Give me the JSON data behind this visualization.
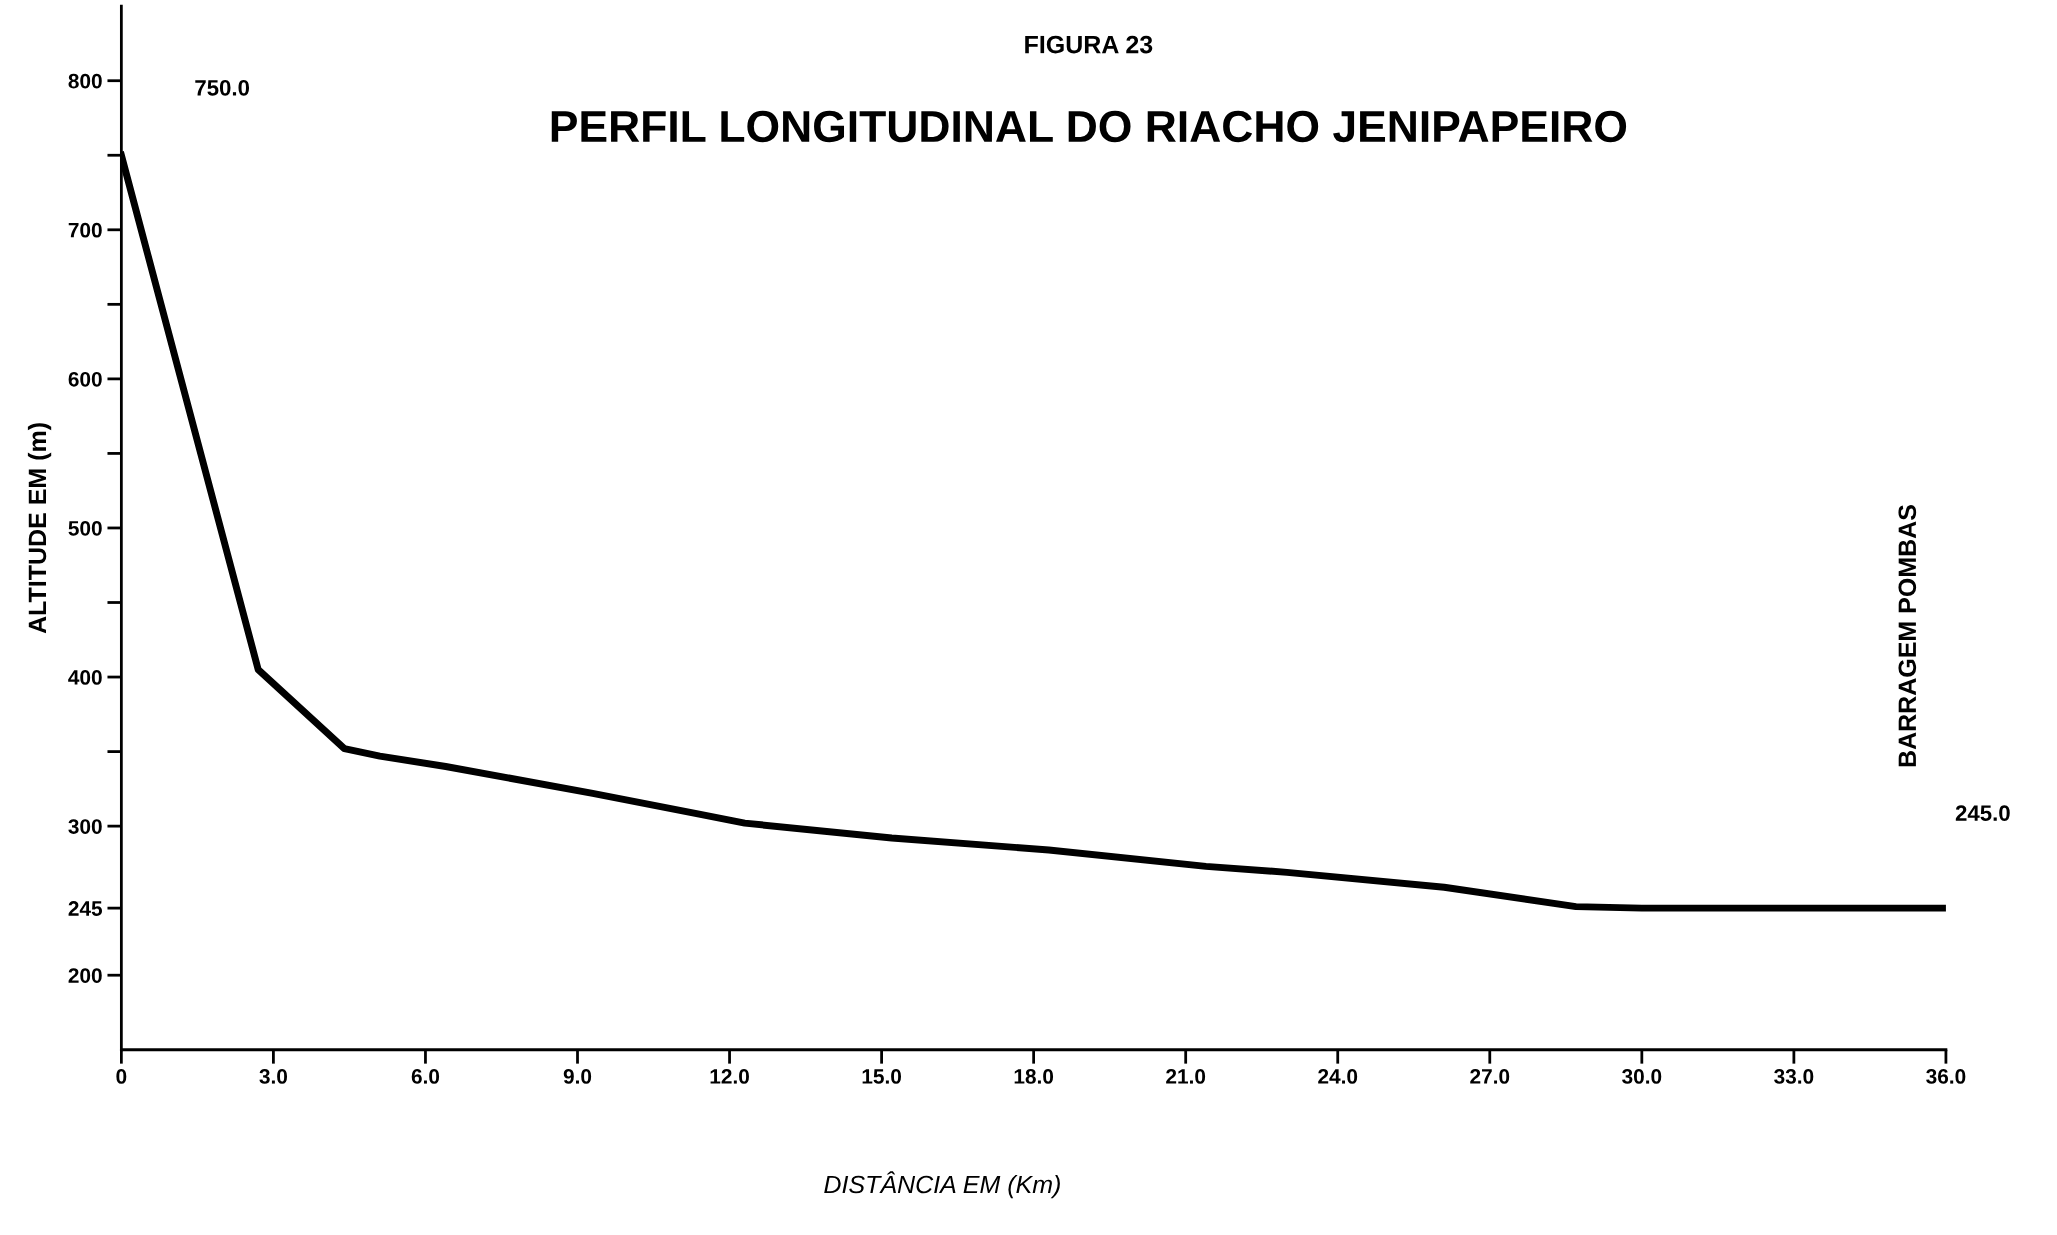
{
  "chart_data": {
    "type": "line",
    "subtitle": "FIGURA 23",
    "title": "PERFIL LONGITUDINAL DO RIACHO JENIPAPEIRO",
    "xlabel": "DISTÂNCIA EM (Km)",
    "ylabel": "ALTITUDE EM (m)",
    "x": [
      0,
      2.7,
      4.4,
      5.1,
      6.4,
      9.3,
      11.4,
      12.3,
      15.2,
      18.3,
      21.4,
      23.0,
      26.1,
      28.7,
      30.0,
      36.0
    ],
    "series": [
      {
        "color": "#000000",
        "values": [
          750,
          405,
          352,
          347,
          340,
          322,
          308,
          302,
          292,
          284,
          273,
          269,
          259,
          246,
          245,
          245
        ]
      }
    ],
    "xlim": [
      0,
      36
    ],
    "ylim": [
      150,
      850
    ],
    "xticks": [
      0,
      {
        "value": 3,
        "label": "3.0"
      },
      {
        "value": 6,
        "label": "6.0"
      },
      {
        "value": 9,
        "label": "9.0"
      },
      {
        "value": 12,
        "label": "12.0"
      },
      {
        "value": 15,
        "label": "15.0"
      },
      {
        "value": 18,
        "label": "18.0"
      },
      {
        "value": 21,
        "label": "21.0"
      },
      {
        "value": 24,
        "label": "24.0"
      },
      {
        "value": 27,
        "label": "27.0"
      },
      {
        "value": 30,
        "label": "30.0"
      },
      {
        "value": 33,
        "label": "33.0"
      },
      {
        "value": 36,
        "label": "36.0"
      }
    ],
    "yticks": [
      200,
      245,
      300,
      {
        "value": 350,
        "label": null
      },
      400,
      {
        "value": 450,
        "label": null
      },
      500,
      {
        "value": 550,
        "label": null
      },
      600,
      {
        "value": 650,
        "label": null
      },
      700,
      {
        "value": 750,
        "label": null
      },
      800
    ],
    "annotations": [
      "750.0",
      "245.0",
      "BARRAGEM POMBAS"
    ],
    "grid": false,
    "marker": "none",
    "line_style": "solid",
    "legend": false
  }
}
